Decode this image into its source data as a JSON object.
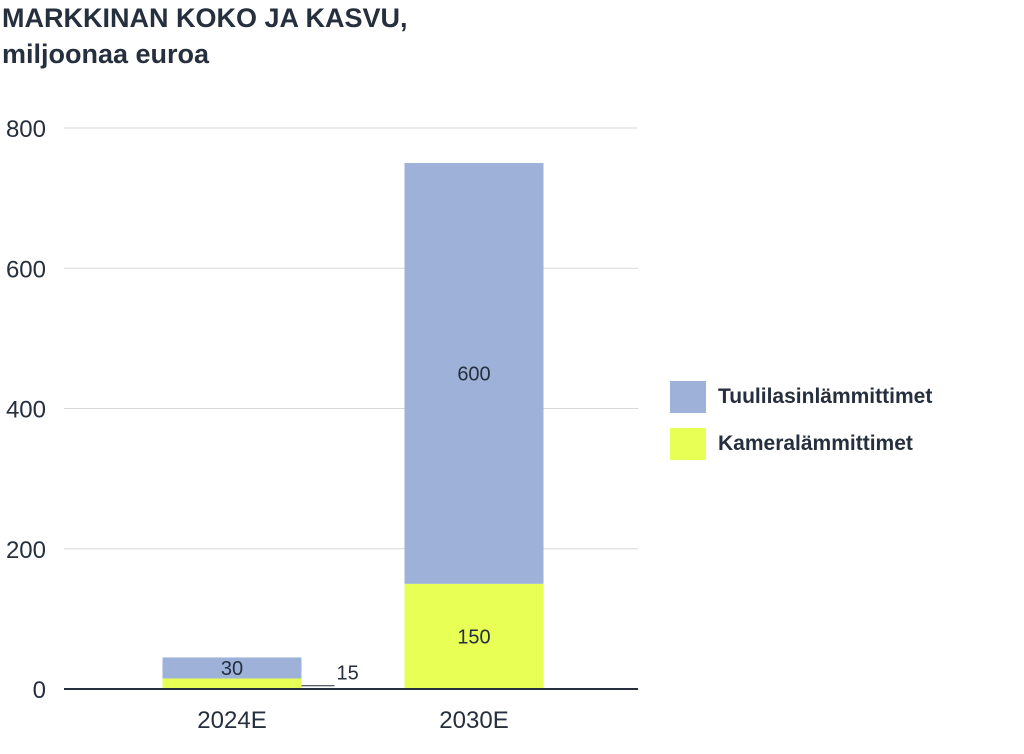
{
  "chart_data": {
    "type": "bar",
    "stacked": true,
    "title": "MARKKINAN KOKO JA KASVU,",
    "subtitle": "miljoonaa euroa",
    "categories": [
      "2024E",
      "2030E"
    ],
    "series": [
      {
        "name": "Kameralämmittimet",
        "values": [
          15,
          150
        ],
        "color": "#e8ff55"
      },
      {
        "name": "Tuulilasinlämmittimet",
        "values": [
          30,
          600
        ],
        "color": "#9db1d9"
      }
    ],
    "ylim": [
      0,
      800
    ],
    "yticks": [
      "0",
      "200",
      "400",
      "600",
      "800"
    ],
    "grid": true,
    "legend": "right",
    "xlabel": "",
    "ylabel": ""
  }
}
